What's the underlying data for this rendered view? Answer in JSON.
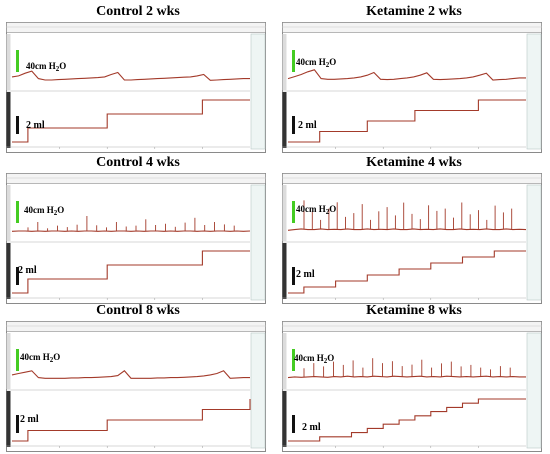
{
  "colors": {
    "pressure_trace": "#a33a2a",
    "volume_trace": "#a33a2a",
    "pressure_scale": "#44cc22",
    "volume_scale": "#111111",
    "frame": "#8a8a8a"
  },
  "chart_data": [
    {
      "type": "line",
      "title": "Control 2 wks",
      "pressure_scale_label": {
        "prefix": "40cm H",
        "sub": "2",
        "suffix": "O"
      },
      "volume_scale_label": "2 ml",
      "series": [
        {
          "values": [
            0.15,
            0.18,
            0.26,
            0.32,
            0.1,
            0.06,
            0.06,
            0.07,
            0.08,
            0.09,
            0.1,
            0.11,
            0.12,
            0.13,
            0.15,
            0.22,
            0.28,
            0.06,
            0.06,
            0.07,
            0.08,
            0.09,
            0.1,
            0.11,
            0.12,
            0.13,
            0.14,
            0.15,
            0.18,
            0.22,
            0.05,
            0.06,
            0.07,
            0.08,
            0.09,
            0.1,
            0.1
          ]
        },
        {
          "values": [
            0,
            1,
            1,
            1,
            1,
            1,
            2,
            2,
            2,
            2,
            2,
            2,
            3,
            3,
            3,
            3
          ]
        }
      ],
      "spikes": []
    },
    {
      "type": "line",
      "title": "Ketamine 2 wks",
      "pressure_scale_label": {
        "prefix": "40cm H",
        "sub": "2",
        "suffix": "O"
      },
      "volume_scale_label": "2 ml",
      "series": [
        {
          "values": [
            0.1,
            0.16,
            0.22,
            0.3,
            0.36,
            0.1,
            0.08,
            0.08,
            0.09,
            0.1,
            0.12,
            0.15,
            0.2,
            0.28,
            0.08,
            0.07,
            0.08,
            0.1,
            0.12,
            0.15,
            0.2,
            0.27,
            0.08,
            0.07,
            0.08,
            0.09,
            0.1,
            0.12,
            0.15,
            0.2,
            0.26,
            0.06,
            0.07,
            0.08,
            0.1,
            0.12,
            0.12
          ]
        },
        {
          "values": [
            0,
            0,
            1,
            1,
            1,
            2,
            2,
            2,
            3,
            3,
            3,
            3,
            4,
            4,
            4,
            4
          ]
        }
      ],
      "spikes": []
    },
    {
      "type": "line",
      "title": "Control 4 wks",
      "pressure_scale_label": {
        "prefix": "40cm H",
        "sub": "2",
        "suffix": "O"
      },
      "volume_scale_label": "2 ml",
      "series": [
        {
          "values": [
            0.05,
            0.06,
            0.06,
            0.05,
            0.06,
            0.05,
            0.06,
            0.06,
            0.05,
            0.06,
            0.05,
            0.06,
            0.06,
            0.05,
            0.06,
            0.05,
            0.06,
            0.06,
            0.05,
            0.06,
            0.05,
            0.06,
            0.06,
            0.05,
            0.06,
            0.05,
            0.06,
            0.06,
            0.05,
            0.06,
            0.05,
            0.06,
            0.06,
            0.05,
            0.06,
            0.05,
            0.06
          ]
        },
        {
          "values": [
            0,
            1,
            1,
            1,
            1,
            1,
            2,
            2,
            2,
            2,
            2,
            2,
            3,
            3,
            3,
            3
          ]
        }
      ],
      "spikes": [
        0.12,
        0.3,
        0.1,
        0.18,
        0.14,
        0.22,
        0.5,
        0.2,
        0.12,
        0.3,
        0.15,
        0.18,
        0.4,
        0.2,
        0.25,
        0.15,
        0.28,
        0.45,
        0.2,
        0.3,
        0.22,
        0.18
      ]
    },
    {
      "type": "line",
      "title": "Ketamine 4 wks",
      "pressure_scale_label": {
        "prefix": "40cm H",
        "sub": "2",
        "suffix": "O"
      },
      "volume_scale_label": "2 ml",
      "series": [
        {
          "values": [
            0.08,
            0.1,
            0.12,
            0.1,
            0.1,
            0.12,
            0.1,
            0.11,
            0.1,
            0.12,
            0.1,
            0.1,
            0.12,
            0.1,
            0.11,
            0.1,
            0.12,
            0.1,
            0.1,
            0.12,
            0.1,
            0.11,
            0.1,
            0.12,
            0.1,
            0.1,
            0.12,
            0.1,
            0.11,
            0.1,
            0.12,
            0.1,
            0.1,
            0.12,
            0.1,
            0.11,
            0.1
          ]
        },
        {
          "values": [
            0,
            1,
            1,
            2,
            2,
            3,
            3,
            4,
            4,
            5,
            5,
            6,
            6,
            7,
            7,
            7
          ]
        }
      ],
      "spikes": [
        0.95,
        0.6,
        0.3,
        0.7,
        0.9,
        0.4,
        0.55,
        0.85,
        0.3,
        0.6,
        0.75,
        0.45,
        0.9,
        0.5,
        0.35,
        0.8,
        0.6,
        0.7,
        0.4,
        0.88,
        0.5,
        0.65,
        0.3,
        0.8,
        0.55,
        0.7
      ]
    },
    {
      "type": "line",
      "title": "Control 8 wks",
      "pressure_scale_label": {
        "prefix": "40cm H",
        "sub": "2",
        "suffix": "O"
      },
      "volume_scale_label": "2 ml",
      "series": [
        {
          "values": [
            0.18,
            0.22,
            0.26,
            0.3,
            0.1,
            0.08,
            0.08,
            0.08,
            0.08,
            0.09,
            0.09,
            0.1,
            0.1,
            0.11,
            0.12,
            0.13,
            0.16,
            0.3,
            0.08,
            0.08,
            0.08,
            0.08,
            0.09,
            0.09,
            0.1,
            0.1,
            0.11,
            0.12,
            0.13,
            0.15,
            0.18,
            0.22,
            0.3,
            0.08,
            0.09,
            0.1,
            0.1
          ]
        },
        {
          "values": [
            0,
            1,
            1,
            1,
            1,
            1,
            2,
            2,
            2,
            2,
            2,
            2,
            3,
            3,
            3,
            4
          ]
        }
      ],
      "spikes": []
    },
    {
      "type": "line",
      "title": "Ketamine 8 wks",
      "pressure_scale_label": {
        "prefix": "40cm H",
        "sub": "2",
        "suffix": "O"
      },
      "volume_scale_label": "2 ml",
      "series": [
        {
          "values": [
            0.1,
            0.12,
            0.11,
            0.12,
            0.13,
            0.12,
            0.11,
            0.13,
            0.12,
            0.14,
            0.12,
            0.13,
            0.12,
            0.14,
            0.13,
            0.12,
            0.14,
            0.13,
            0.12,
            0.13,
            0.14,
            0.12,
            0.13,
            0.12,
            0.14,
            0.13,
            0.12,
            0.13,
            0.12,
            0.13,
            0.14,
            0.12,
            0.13,
            0.12,
            0.13,
            0.12,
            0.12
          ]
        },
        {
          "values": [
            0,
            0,
            1,
            1,
            2,
            3,
            4,
            5,
            6,
            7,
            8,
            9,
            10,
            10,
            10,
            10
          ]
        }
      ],
      "spikes": [
        0.3,
        0.45,
        0.35,
        0.5,
        0.4,
        0.55,
        0.3,
        0.6,
        0.45,
        0.5,
        0.35,
        0.4,
        0.55,
        0.3,
        0.45,
        0.5,
        0.35,
        0.4,
        0.3,
        0.25,
        0.35,
        0.3
      ]
    }
  ]
}
